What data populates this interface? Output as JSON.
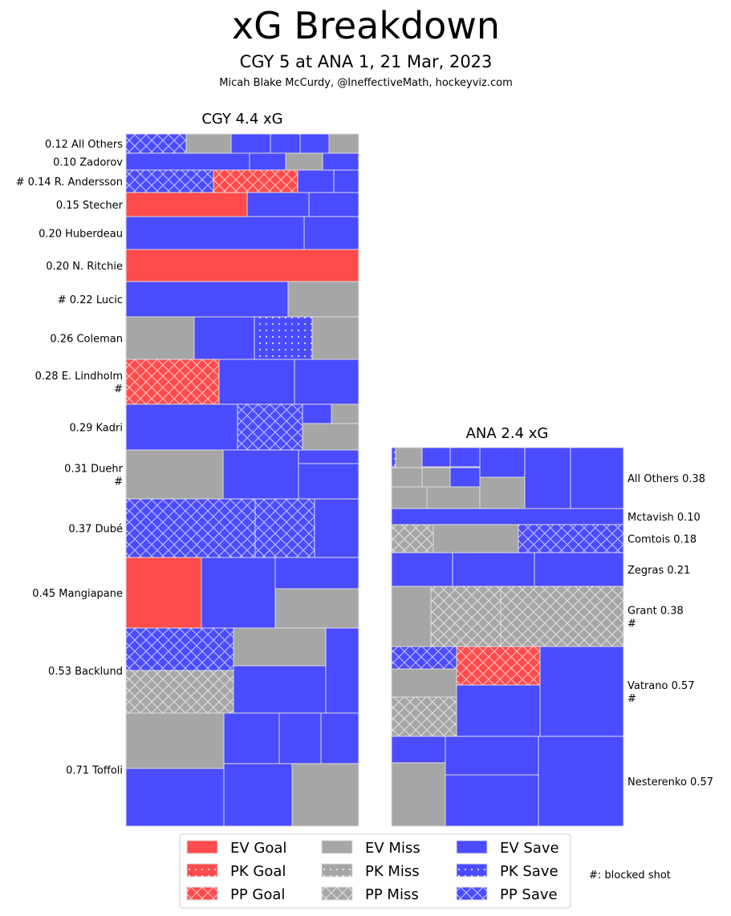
{
  "chart_data": {
    "type": "treemap",
    "title": "xG Breakdown",
    "subtitle": "CGY 5 at ANA 1, 21 Mar, 2023",
    "credit": "Micah Blake McCurdy, @IneffectiveMath, hockeyviz.com",
    "colors": {
      "goal": "#ff4b4b",
      "miss": "#a6a6a6",
      "save": "#4b4bff"
    },
    "teams": [
      {
        "title": "CGY 4.4 xG",
        "players": [
          {
            "label": "0.12 All Others",
            "xg": 0.12,
            "shots": [
              "PP Save",
              "EV Miss",
              "EV Save",
              "EV Save",
              "EV Save",
              "EV Miss"
            ]
          },
          {
            "label": "0.10 Zadorov",
            "xg": 0.1,
            "shots": [
              "EV Save",
              "EV Save",
              "EV Miss",
              "EV Save"
            ]
          },
          {
            "label": "# 0.14 R. Andersson",
            "xg": 0.14,
            "shots": [
              "PP Save",
              "PP Goal",
              "EV Save",
              "EV Save"
            ]
          },
          {
            "label": "0.15 Stecher",
            "xg": 0.15,
            "shots": [
              "EV Goal",
              "EV Save",
              "EV Save"
            ]
          },
          {
            "label": "0.20 Huberdeau",
            "xg": 0.2,
            "shots": [
              "EV Save",
              "EV Save"
            ]
          },
          {
            "label": "0.20 N. Ritchie",
            "xg": 0.2,
            "shots": [
              "EV Goal"
            ]
          },
          {
            "label": "# 0.22 Lucic",
            "xg": 0.22,
            "shots": [
              "EV Save",
              "EV Miss"
            ]
          },
          {
            "label": "0.26 Coleman",
            "xg": 0.26,
            "shots": [
              "EV Miss",
              "EV Save",
              "PK Save",
              "EV Miss"
            ]
          },
          {
            "label": "0.28 E. Lindholm",
            "label2": "#",
            "xg": 0.28,
            "shots": [
              "PP Goal",
              "EV Save",
              "EV Save"
            ]
          },
          {
            "label": "0.29 Kadri",
            "xg": 0.29,
            "shots": [
              "EV Save",
              "PP Save",
              "EV Save",
              "EV Miss",
              "EV Miss"
            ]
          },
          {
            "label": "0.31 Duehr",
            "label2": "#",
            "xg": 0.31,
            "shots": [
              "EV Miss",
              "EV Save",
              "EV Save",
              "EV Save"
            ]
          },
          {
            "label": "0.37 Dubé",
            "xg": 0.37,
            "shots": [
              "PP Save",
              "PP Save",
              "EV Save"
            ]
          },
          {
            "label": "0.45 Mangiapane",
            "xg": 0.45,
            "shots": [
              "EV Goal",
              "EV Save",
              "EV Save",
              "EV Miss"
            ]
          },
          {
            "label": "0.53 Backlund",
            "xg": 0.53,
            "shots": [
              "PP Save",
              "PP Miss",
              "EV Miss",
              "EV Save",
              "EV Save"
            ]
          },
          {
            "label": "0.71 Toffoli",
            "xg": 0.71,
            "shots": [
              "EV Miss",
              "EV Save",
              "EV Save",
              "EV Save",
              "EV Save",
              "EV Save",
              "EV Miss"
            ]
          }
        ]
      },
      {
        "title": "ANA 2.4 xG",
        "players": [
          {
            "label": "All Others 0.38",
            "xg": 0.38,
            "shots": [
              "PK Save",
              "EV Miss",
              "EV Save",
              "EV Save",
              "EV Miss",
              "EV Miss",
              "EV Save",
              "EV Miss",
              "EV Miss",
              "EV Save",
              "EV Miss",
              "EV Save",
              "EV Save"
            ]
          },
          {
            "label": "Mctavish 0.10",
            "xg": 0.1,
            "shots": [
              "EV Save"
            ]
          },
          {
            "label": "Comtois 0.18",
            "xg": 0.18,
            "shots": [
              "PP Miss",
              "EV Miss",
              "PP Save"
            ]
          },
          {
            "label": "Zegras 0.21",
            "xg": 0.21,
            "shots": [
              "EV Save",
              "EV Save",
              "EV Save"
            ]
          },
          {
            "label": "Grant 0.38",
            "label2": "#",
            "xg": 0.38,
            "shots": [
              "EV Miss",
              "PP Miss",
              "PP Miss"
            ]
          },
          {
            "label": "Vatrano 0.57",
            "label2": "#",
            "xg": 0.57,
            "shots": [
              "PP Save",
              "EV Miss",
              "PP Miss",
              "PP Goal",
              "EV Save",
              "EV Save"
            ]
          },
          {
            "label": "Nesterenko 0.57",
            "xg": 0.57,
            "shots": [
              "EV Save",
              "EV Miss",
              "EV Save",
              "EV Save",
              "EV Save"
            ]
          }
        ]
      }
    ],
    "legend": [
      "EV Goal",
      "PK Goal",
      "PP Goal",
      "EV Miss",
      "PK Miss",
      "PP Miss",
      "EV Save",
      "PK Save",
      "PP Save"
    ],
    "note": "#: blocked shot"
  }
}
